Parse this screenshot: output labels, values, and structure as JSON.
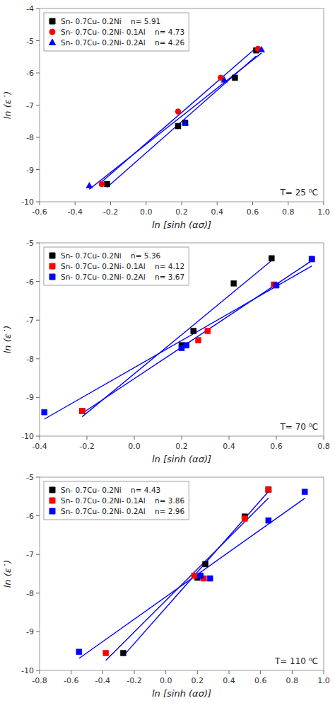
{
  "chart_data": [
    {
      "type": "scatter",
      "xlabel": "ln [sinh (ασ)]",
      "ylabel": "ln (ε˙)",
      "annotation": "T= 25 ⁰C",
      "legend": "upper left",
      "fit_color": "blue",
      "xlim": [
        -0.6,
        1
      ],
      "xticks": [
        -0.6,
        -0.4,
        -0.2,
        {
          "value": 0,
          "label": "0.0"
        },
        0.2,
        0.4,
        0.6,
        0.8,
        {
          "value": 1,
          "label": "1.0"
        }
      ],
      "ylim": [
        -10,
        -4
      ],
      "yticks": [
        -10,
        -9,
        -8,
        -7,
        -6,
        -5,
        -4
      ],
      "series": [
        {
          "name": "Sn- 0.7Cu- 0.2Ni    n= 5.91",
          "color": "black",
          "marker": "square",
          "x": [
            -0.22,
            0.18,
            0.22,
            0.5,
            0.62
          ],
          "values": [
            -9.45,
            -7.65,
            -7.55,
            -6.15,
            -5.3
          ],
          "fit_x": [
            -0.22,
            0.62
          ],
          "fit_y": [
            -9.5501,
            -5.4724
          ]
        },
        {
          "name": "Sn- 0.7Cu- 0.2Ni- 0.1Al    n= 4.73",
          "color": "red",
          "marker": "circle",
          "x": [
            -0.25,
            0.18,
            0.42,
            0.63
          ],
          "values": [
            -9.45,
            -7.2,
            -6.15,
            -5.25
          ],
          "fit_x": [
            -0.25,
            0.63
          ],
          "fit_y": [
            -9.3808,
            -5.1705
          ]
        },
        {
          "name": "Sn- 0.7Cu- 0.2Ni- 0.2Al    n= 4.26",
          "color": "blue",
          "marker": "triangle",
          "x": [
            -0.32,
            0.22,
            0.44,
            0.65
          ],
          "values": [
            -9.5,
            -7.55,
            -6.22,
            -5.28
          ],
          "fit_x": [
            -0.32,
            0.65
          ],
          "fit_y": [
            -9.6128,
            -5.3819
          ]
        }
      ]
    },
    {
      "type": "scatter",
      "xlabel": "ln [sinh (ασ)]",
      "ylabel": "ln (ε˙)",
      "annotation": "T= 70 ⁰C",
      "legend": "upper left",
      "fit_color": "blue",
      "xlim": [
        -0.4,
        0.8
      ],
      "xticks": [
        -0.4,
        -0.2,
        {
          "value": 0,
          "label": "0.0"
        },
        0.2,
        0.4,
        0.6,
        0.8
      ],
      "ylim": [
        -10,
        -5
      ],
      "yticks": [
        -10,
        -9,
        -8,
        -7,
        -6,
        -5
      ],
      "series": [
        {
          "name": "Sn- 0.7Cu- 0.2Ni    n= 5.36",
          "color": "black",
          "marker": "square",
          "x": [
            -0.22,
            0.2,
            0.25,
            0.42,
            0.58
          ],
          "values": [
            -9.35,
            -7.65,
            -7.28,
            -6.05,
            -5.4
          ],
          "fit_x": [
            -0.22,
            0.58
          ],
          "fit_y": [
            -9.4992,
            -5.4594
          ]
        },
        {
          "name": "Sn- 0.7Cu- 0.2Ni- 0.1Al    n= 4.12",
          "color": "red",
          "marker": "square",
          "x": [
            -0.22,
            0.27,
            0.31,
            0.59,
            0.75
          ],
          "values": [
            -9.35,
            -7.52,
            -7.28,
            -6.08,
            -5.42
          ],
          "fit_x": [
            -0.22,
            0.75
          ],
          "fit_y": [
            -9.4093,
            -5.4612
          ]
        },
        {
          "name": "Sn- 0.7Cu- 0.2Ni- 0.2Al    n= 3.67",
          "color": "blue",
          "marker": "square",
          "x": [
            -0.38,
            0.2,
            0.22,
            0.6,
            0.75
          ],
          "values": [
            -9.38,
            -7.72,
            -7.65,
            -6.1,
            -5.42
          ],
          "fit_x": [
            -0.38,
            0.75
          ],
          "fit_y": [
            -9.5607,
            -5.5993
          ]
        }
      ]
    },
    {
      "type": "scatter",
      "xlabel": "ln [sinh (ασ)]",
      "ylabel": "ln (ε˙)",
      "annotation": "T= 110 ⁰C",
      "legend": "upper left",
      "fit_color": "blue",
      "xlim": [
        -0.8,
        1
      ],
      "xticks": [
        -0.8,
        -0.6,
        -0.4,
        -0.2,
        {
          "value": 0,
          "label": "0.0"
        },
        0.2,
        0.4,
        0.6,
        0.8,
        {
          "value": 1,
          "label": "1.0"
        }
      ],
      "ylim": [
        -10,
        -5
      ],
      "yticks": [
        -10,
        -9,
        -8,
        -7,
        -6,
        -5
      ],
      "series": [
        {
          "name": "Sn- 0.7Cu- 0.2Ni    n= 4.43",
          "color": "black",
          "marker": "square",
          "x": [
            -0.27,
            0.2,
            0.25,
            0.5,
            0.65
          ],
          "values": [
            -9.55,
            -7.6,
            -7.25,
            -6.02,
            -5.32
          ],
          "fit_x": [
            -0.27,
            0.65
          ],
          "fit_y": [
            -9.6265,
            -5.3724
          ]
        },
        {
          "name": "Sn- 0.7Cu- 0.2Ni- 0.1Al    n= 3.86",
          "color": "red",
          "marker": "square",
          "x": [
            -0.38,
            0.18,
            0.24,
            0.5,
            0.65
          ],
          "values": [
            -9.55,
            -7.55,
            -7.62,
            -6.07,
            -5.32
          ],
          "fit_x": [
            -0.38,
            0.65
          ],
          "fit_y": [
            -9.7412,
            -5.5425
          ]
        },
        {
          "name": "Sn- 0.7Cu- 0.2Ni- 0.2Al    n= 2.96",
          "color": "blue",
          "marker": "square",
          "x": [
            -0.55,
            0.22,
            0.28,
            0.65,
            0.88
          ],
          "values": [
            -9.52,
            -7.55,
            -7.62,
            -6.12,
            -5.38
          ],
          "fit_x": [
            -0.55,
            0.88
          ],
          "fit_y": [
            -9.6883,
            -5.5465
          ]
        }
      ]
    }
  ]
}
